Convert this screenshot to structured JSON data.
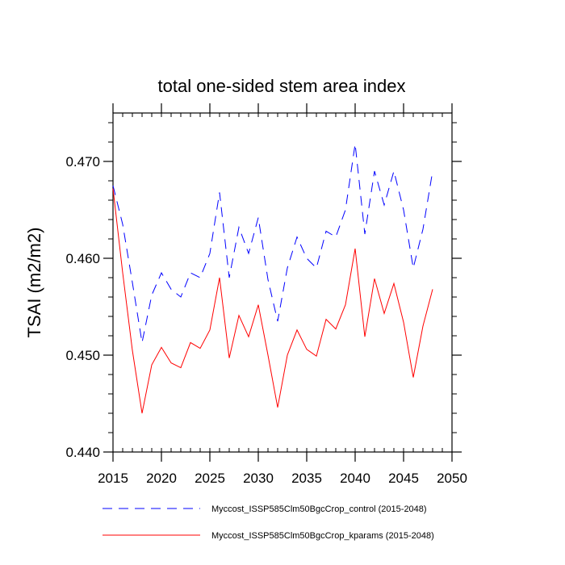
{
  "chart_data": {
    "type": "line",
    "title": "total one-sided stem area index",
    "xlabel": "",
    "ylabel": "TSAI  (m2/m2)",
    "xlim": [
      2015,
      2050
    ],
    "ylim": [
      0.44,
      0.475
    ],
    "xticks": [
      2015,
      2020,
      2025,
      2030,
      2035,
      2040,
      2045,
      2050
    ],
    "yticks": [
      0.44,
      0.45,
      0.46,
      0.47
    ],
    "xtick_labels": [
      "2015",
      "2020",
      "2025",
      "2030",
      "2035",
      "2040",
      "2045",
      "2050"
    ],
    "ytick_labels": [
      "0.440",
      "0.450",
      "0.460",
      "0.470"
    ],
    "grid": false,
    "legend_position": "bottom",
    "x": [
      2015,
      2016,
      2017,
      2018,
      2019,
      2020,
      2021,
      2022,
      2023,
      2024,
      2025,
      2026,
      2027,
      2028,
      2029,
      2030,
      2031,
      2032,
      2033,
      2034,
      2035,
      2036,
      2037,
      2038,
      2039,
      2040,
      2041,
      2042,
      2043,
      2044,
      2045,
      2046,
      2047,
      2048
    ],
    "series": [
      {
        "name": "Myccost_ISSP585Clm50BgcCrop_control (2015-2048)",
        "color": "#0000ff",
        "style": "dashed",
        "values": [
          0.4675,
          0.4635,
          0.4575,
          0.4513,
          0.4562,
          0.4585,
          0.4568,
          0.456,
          0.4585,
          0.458,
          0.4605,
          0.4668,
          0.458,
          0.4632,
          0.4605,
          0.4642,
          0.4578,
          0.4535,
          0.459,
          0.4622,
          0.46,
          0.459,
          0.4628,
          0.4622,
          0.465,
          0.4718,
          0.4625,
          0.469,
          0.4655,
          0.469,
          0.465,
          0.459,
          0.463,
          0.469
        ]
      },
      {
        "name": "Myccost_ISSP585Clm50BgcCrop_kparams (2015-2048)",
        "color": "#ff0000",
        "style": "solid",
        "values": [
          0.4672,
          0.4585,
          0.4505,
          0.444,
          0.449,
          0.4508,
          0.4492,
          0.4487,
          0.4513,
          0.4507,
          0.4526,
          0.458,
          0.4497,
          0.4541,
          0.4519,
          0.4552,
          0.45,
          0.4446,
          0.45,
          0.4526,
          0.4506,
          0.4499,
          0.4537,
          0.4527,
          0.4552,
          0.461,
          0.4519,
          0.4579,
          0.4543,
          0.4574,
          0.4534,
          0.4477,
          0.453,
          0.4568
        ]
      }
    ]
  }
}
